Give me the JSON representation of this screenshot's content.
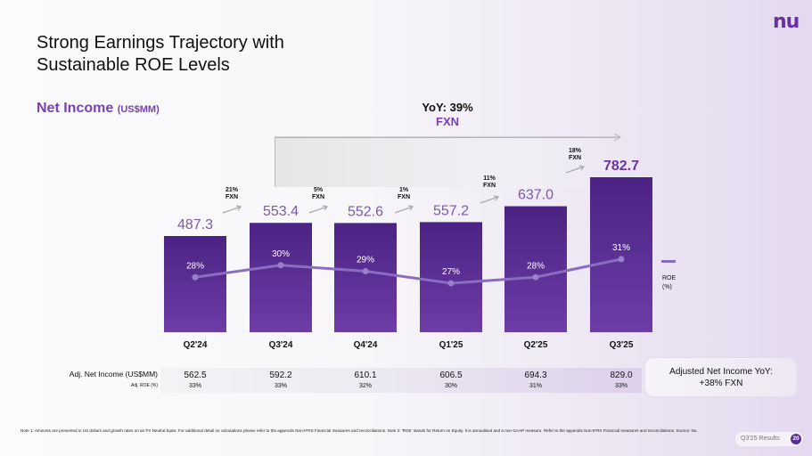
{
  "logo": "nu",
  "title": {
    "line1": "Strong Earnings Trajectory with",
    "line2": "Sustainable ROE Levels"
  },
  "subtitle": {
    "label": "Net Income",
    "unit": "(US$MM)"
  },
  "yoy": {
    "label": "YoY: 39%",
    "sub": "FXN"
  },
  "colors": {
    "bar_top": "#4b2384",
    "bar_bottom": "#6c3da6",
    "accent": "#7a3fb5",
    "roe_line": "#8a6cc0"
  },
  "chart_data": {
    "type": "bar",
    "title": "Net Income (US$MM)",
    "categories": [
      "Q2'24",
      "Q3'24",
      "Q4'24",
      "Q1'25",
      "Q2'25",
      "Q3'25"
    ],
    "series": [
      {
        "name": "Net Income (US$MM)",
        "values": [
          487.3,
          553.4,
          552.6,
          557.2,
          637.0,
          782.7
        ]
      },
      {
        "name": "ROE (%)",
        "type": "line",
        "values": [
          28,
          30,
          29,
          27,
          28,
          31
        ]
      }
    ],
    "value_labels": [
      "487.3",
      "553.4",
      "552.6",
      "557.2",
      "637.0",
      "782.7"
    ],
    "roe_labels": [
      "28%",
      "30%",
      "29%",
      "27%",
      "28%",
      "31%"
    ],
    "qoq_growth": [
      {
        "pct": "21%",
        "basis": "FXN"
      },
      {
        "pct": "5%",
        "basis": "FXN"
      },
      {
        "pct": "1%",
        "basis": "FXN"
      },
      {
        "pct": "11%",
        "basis": "FXN"
      },
      {
        "pct": "18%",
        "basis": "FXN"
      }
    ],
    "legend": {
      "label_line1": "ROE",
      "label_line2": "(%)",
      "position": "right"
    },
    "ylim": [
      0,
      900
    ],
    "grid": false
  },
  "adjusted": {
    "label": "Adj. Net Income (US$MM)",
    "roe_label": "Adj. ROE (%)",
    "values": [
      "562.5",
      "592.2",
      "610.1",
      "606.5",
      "694.3",
      "829.0"
    ],
    "roe": [
      "33%",
      "33%",
      "32%",
      "30%",
      "31%",
      "33%"
    ],
    "yoy_line1": "Adjusted Net Income YoY:",
    "yoy_line2": "+38% FXN"
  },
  "footnote": "Note 1: Amounts are presented in US dollars and growth rates on an FX Neutral basis. For additional detail on calculations please refer to the appendix Non-IFRS Financial measures and reconciliations. Note 2: 'ROE' stands for Return on Equity. It is annualised and a non-GAAP measure. Refer to the appendix Non-IFRS Financial measures and reconciliations. Source: Nu.",
  "footer": {
    "results_label": "Q3'25 Results",
    "page": "20"
  }
}
